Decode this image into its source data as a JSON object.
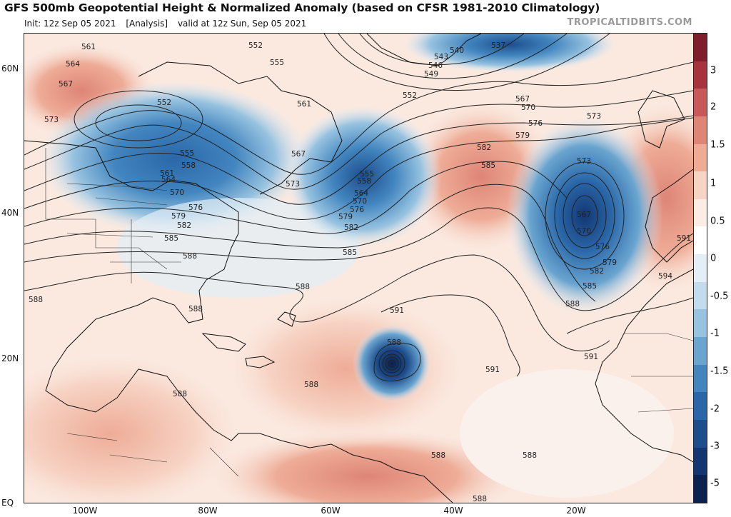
{
  "header": {
    "title": "GFS 500mb Geopotential Height & Normalized Anomaly (based on CFSR 1981-2010 Climatology)",
    "init": "Init: 12z Sep 05 2021",
    "analysis": "[Analysis]",
    "valid": "valid at 12z Sun, Sep 05 2021",
    "brand": "TROPICALTIDBITS.COM"
  },
  "axes": {
    "lat_labels": [
      "60N",
      "40N",
      "20N",
      "EQ"
    ],
    "lon_labels": [
      "100W",
      "80W",
      "60W",
      "40W",
      "20W"
    ]
  },
  "colorbar": {
    "tick_labels": [
      "3",
      "2",
      "1.5",
      "1",
      "0.5",
      "0",
      "-0.5",
      "-1",
      "-1.5",
      "-2",
      "-3",
      "-5"
    ],
    "colors": [
      "#7f1d2a",
      "#a8333c",
      "#c9585a",
      "#de8576",
      "#eeac97",
      "#f7d3c4",
      "#fbece4",
      "#ffffff",
      "#e3eef6",
      "#c3dcec",
      "#98c3e0",
      "#6aa5d0",
      "#4285bf",
      "#2a67a8",
      "#1d4d8c",
      "#133673",
      "#0a2250"
    ]
  },
  "contour_labels": [
    {
      "text": "561"
    },
    {
      "text": "564"
    },
    {
      "text": "567"
    },
    {
      "text": "573"
    },
    {
      "text": "552"
    },
    {
      "text": "555"
    },
    {
      "text": "552"
    },
    {
      "text": "555"
    },
    {
      "text": "558"
    },
    {
      "text": "561"
    },
    {
      "text": "564"
    },
    {
      "text": "570"
    },
    {
      "text": "576"
    },
    {
      "text": "579"
    },
    {
      "text": "582"
    },
    {
      "text": "585"
    },
    {
      "text": "588"
    },
    {
      "text": "588"
    },
    {
      "text": "588"
    },
    {
      "text": "561"
    },
    {
      "text": "567"
    },
    {
      "text": "573"
    },
    {
      "text": "555"
    },
    {
      "text": "558"
    },
    {
      "text": "564"
    },
    {
      "text": "570"
    },
    {
      "text": "576"
    },
    {
      "text": "579"
    },
    {
      "text": "582"
    },
    {
      "text": "585"
    },
    {
      "text": "588"
    },
    {
      "text": "537"
    },
    {
      "text": "540"
    },
    {
      "text": "543"
    },
    {
      "text": "546"
    },
    {
      "text": "549"
    },
    {
      "text": "552"
    },
    {
      "text": "567"
    },
    {
      "text": "570"
    },
    {
      "text": "576"
    },
    {
      "text": "573"
    },
    {
      "text": "579"
    },
    {
      "text": "582"
    },
    {
      "text": "585"
    },
    {
      "text": "573"
    },
    {
      "text": "567"
    },
    {
      "text": "570"
    },
    {
      "text": "576"
    },
    {
      "text": "579"
    },
    {
      "text": "582"
    },
    {
      "text": "585"
    },
    {
      "text": "588"
    },
    {
      "text": "591"
    },
    {
      "text": "594"
    },
    {
      "text": "591"
    },
    {
      "text": "588"
    },
    {
      "text": "591"
    },
    {
      "text": "591"
    },
    {
      "text": "588"
    },
    {
      "text": "588"
    },
    {
      "text": "588"
    },
    {
      "text": "588"
    },
    {
      "text": "588"
    }
  ]
}
